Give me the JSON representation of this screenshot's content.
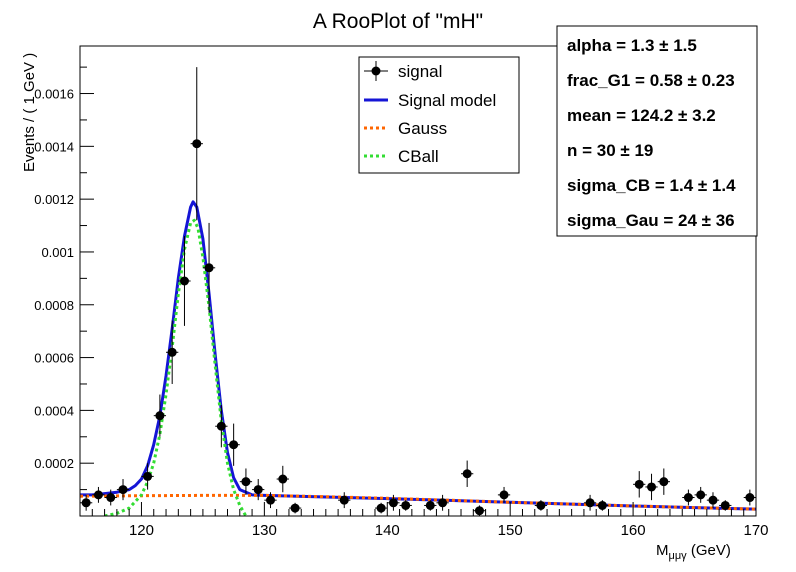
{
  "chart_data": {
    "type": "scatter",
    "title": "A RooPlot of \"mH\"",
    "xlabel": "M",
    "xlabel_sub": "μμγ",
    "xlabel_unit": " (GeV)",
    "ylabel": "Events / ( 1 GeV )",
    "xlim": [
      115,
      170
    ],
    "ylim": [
      0,
      0.00178
    ],
    "x_ticks": [
      120,
      130,
      140,
      150,
      160,
      170
    ],
    "y_ticks": [
      0.0002,
      0.0004,
      0.0006,
      0.0008,
      0.001,
      0.0012,
      0.0014,
      0.0016
    ],
    "y_tick_labels": [
      "0.0002",
      "0.0004",
      "0.0006",
      "0.0008",
      "0.001",
      "0.0012",
      "0.0014",
      "0.0016"
    ],
    "grid": false,
    "legend_position": "top-center",
    "legend": [
      "signal",
      "Signal model",
      "Gauss",
      "CBall"
    ],
    "params": [
      {
        "label": "alpha = ",
        "value": " 1.3 ± 1.5"
      },
      {
        "label": "frac_G1 = ",
        "value": " 0.58 ± 0.23"
      },
      {
        "label": "mean = ",
        "value": " 124.2 ± 3.2"
      },
      {
        "label": "n = ",
        "value": " 30 ± 19"
      },
      {
        "label": "sigma_CB = ",
        "value": " 1.4 ± 1.4"
      },
      {
        "label": "sigma_Gau = ",
        "value": " 24 ± 36"
      }
    ],
    "colors": {
      "signal": "#000000",
      "model": "#1515d6",
      "gauss": "#ff6600",
      "cball": "#33dd33"
    },
    "series": [
      {
        "name": "signal",
        "points": [
          {
            "x": 115.5,
            "y": 5e-05,
            "e": 3e-05
          },
          {
            "x": 116.5,
            "y": 8e-05,
            "e": 3e-05
          },
          {
            "x": 117.5,
            "y": 7e-05,
            "e": 3e-05
          },
          {
            "x": 118.5,
            "y": 0.0001,
            "e": 4e-05
          },
          {
            "x": 120.5,
            "y": 0.00015,
            "e": 5e-05
          },
          {
            "x": 121.5,
            "y": 0.00038,
            "e": 8e-05
          },
          {
            "x": 122.5,
            "y": 0.00062,
            "e": 0.00012
          },
          {
            "x": 123.5,
            "y": 0.00089,
            "e": 0.00017
          },
          {
            "x": 124.5,
            "y": 0.00141,
            "e": 0.00029
          },
          {
            "x": 125.5,
            "y": 0.00094,
            "e": 0.00017
          },
          {
            "x": 126.5,
            "y": 0.00034,
            "e": 8e-05
          },
          {
            "x": 127.5,
            "y": 0.00027,
            "e": 8e-05
          },
          {
            "x": 128.5,
            "y": 0.00013,
            "e": 5e-05
          },
          {
            "x": 129.5,
            "y": 0.0001,
            "e": 4e-05
          },
          {
            "x": 130.5,
            "y": 6e-05,
            "e": 3e-05
          },
          {
            "x": 131.5,
            "y": 0.00014,
            "e": 5e-05
          },
          {
            "x": 132.5,
            "y": 3e-05,
            "e": 2e-05
          },
          {
            "x": 136.5,
            "y": 6e-05,
            "e": 3e-05
          },
          {
            "x": 139.5,
            "y": 3e-05,
            "e": 2e-05
          },
          {
            "x": 140.5,
            "y": 5e-05,
            "e": 3e-05
          },
          {
            "x": 141.5,
            "y": 4e-05,
            "e": 2e-05
          },
          {
            "x": 143.5,
            "y": 4e-05,
            "e": 2e-05
          },
          {
            "x": 144.5,
            "y": 5e-05,
            "e": 3e-05
          },
          {
            "x": 146.5,
            "y": 0.00016,
            "e": 5e-05
          },
          {
            "x": 147.5,
            "y": 2e-05,
            "e": 2e-05
          },
          {
            "x": 149.5,
            "y": 8e-05,
            "e": 3e-05
          },
          {
            "x": 152.5,
            "y": 4e-05,
            "e": 2e-05
          },
          {
            "x": 156.5,
            "y": 5e-05,
            "e": 3e-05
          },
          {
            "x": 157.5,
            "y": 4e-05,
            "e": 2e-05
          },
          {
            "x": 160.5,
            "y": 0.00012,
            "e": 5e-05
          },
          {
            "x": 161.5,
            "y": 0.00011,
            "e": 5e-05
          },
          {
            "x": 162.5,
            "y": 0.00013,
            "e": 5e-05
          },
          {
            "x": 164.5,
            "y": 7e-05,
            "e": 3e-05
          },
          {
            "x": 165.5,
            "y": 8e-05,
            "e": 3e-05
          },
          {
            "x": 166.5,
            "y": 6e-05,
            "e": 3e-05
          },
          {
            "x": 167.5,
            "y": 4e-05,
            "e": 2e-05
          },
          {
            "x": 169.5,
            "y": 7e-05,
            "e": 3e-05
          }
        ]
      },
      {
        "name": "Signal model",
        "x": [
          115,
          116,
          117,
          118,
          119,
          119.5,
          120,
          120.5,
          121,
          121.5,
          122,
          122.5,
          123,
          123.5,
          124,
          124.2,
          124.5,
          125,
          125.5,
          126,
          126.5,
          127,
          127.5,
          128,
          129,
          130,
          135,
          140,
          145,
          150,
          155,
          160,
          165,
          170
        ],
        "y": [
          8e-05,
          8e-05,
          8.5e-05,
          9e-05,
          0.0001,
          0.000115,
          0.00014,
          0.00019,
          0.00027,
          0.00038,
          0.00053,
          0.00071,
          0.0009,
          0.00106,
          0.00117,
          0.00119,
          0.00117,
          0.00105,
          0.00084,
          0.00061,
          0.0004,
          0.00024,
          0.000145,
          0.0001,
          8e-05,
          7.8e-05,
          7.2e-05,
          6.6e-05,
          5.9e-05,
          5.2e-05,
          4.5e-05,
          3.8e-05,
          3.2e-05,
          2.6e-05
        ]
      },
      {
        "name": "Gauss",
        "x": [
          115,
          120,
          125,
          130,
          135,
          140,
          145,
          150,
          155,
          160,
          165,
          170
        ],
        "y": [
          7.5e-05,
          7.7e-05,
          7.8e-05,
          7.8e-05,
          7.3e-05,
          6.7e-05,
          6e-05,
          5.2e-05,
          4.5e-05,
          3.8e-05,
          3.2e-05,
          2.6e-05
        ]
      },
      {
        "name": "CBall",
        "x": [
          117,
          118,
          119,
          120,
          120.5,
          121,
          121.5,
          122,
          122.5,
          123,
          123.5,
          124,
          124.3,
          124.6,
          125,
          125.5,
          126,
          126.5,
          127,
          127.5,
          128,
          128.5
        ],
        "y": [
          0.0,
          1e-05,
          3e-05,
          8e-05,
          0.00013,
          0.0002,
          0.00031,
          0.00046,
          0.00064,
          0.00084,
          0.00101,
          0.00111,
          0.00112,
          0.00109,
          0.00098,
          0.00079,
          0.00057,
          0.00036,
          0.0002,
          0.0001,
          4e-05,
          0.0
        ]
      }
    ]
  }
}
